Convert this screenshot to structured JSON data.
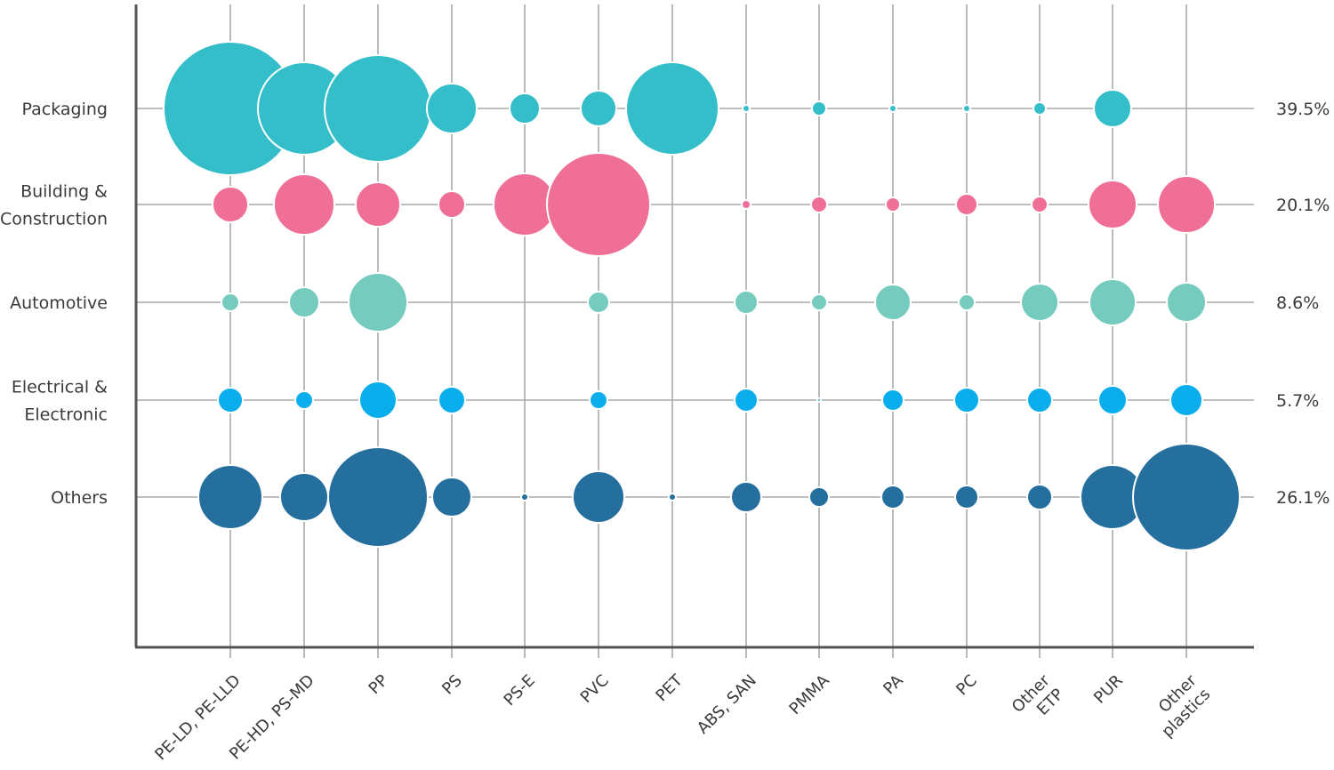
{
  "chart_data": {
    "type": "bubble",
    "title": "",
    "xlabel": "",
    "ylabel": "",
    "categories": [
      "PE-LD, PE-LLD",
      "PE-HD, PS-MD",
      "PP",
      "PS",
      "PS-E",
      "PVC",
      "PET",
      "ABS, SAN",
      "PMMA",
      "PA",
      "PC",
      "Other ETP",
      "PUR",
      "Other plastics"
    ],
    "series": [
      {
        "name": "Packaging",
        "share": "39.5%",
        "color": "#33bec9",
        "values": [
          75,
          52,
          60,
          28,
          17,
          20,
          52,
          4,
          8,
          4,
          4,
          7,
          21,
          0
        ]
      },
      {
        "name": "Building & Construction",
        "share": "20.1%",
        "color": "#ef6f96",
        "values": [
          20,
          34,
          25,
          15,
          35,
          58,
          0,
          5,
          9,
          8,
          12,
          9,
          27,
          32
        ]
      },
      {
        "name": "Automotive",
        "share": "8.6%",
        "color": "#74cbbe",
        "values": [
          10,
          17,
          33,
          0,
          0,
          12,
          0,
          13,
          9,
          20,
          9,
          21,
          26,
          22
        ]
      },
      {
        "name": "Electrical & Electronic",
        "share": "5.7%",
        "color": "#0aaeed",
        "values": [
          14,
          10,
          21,
          15,
          0,
          10,
          0,
          13,
          2,
          12,
          14,
          14,
          16,
          18
        ]
      },
      {
        "name": "Others",
        "share": "26.1%",
        "color": "#256f9e",
        "values": [
          36,
          27,
          56,
          22,
          4,
          29,
          4,
          17,
          11,
          13,
          13,
          14,
          36,
          60
        ]
      }
    ],
    "row_labels": [
      [
        "Packaging"
      ],
      [
        "Building &",
        "Construction"
      ],
      [
        "Automotive"
      ],
      [
        "Electrical &",
        "Electronic"
      ],
      [
        "Others"
      ]
    ],
    "col_labels": [
      [
        "PE-LD, PE-LLD"
      ],
      [
        "PE-HD, PS-MD"
      ],
      [
        "PP"
      ],
      [
        "PS"
      ],
      [
        "PS-E"
      ],
      [
        "PVC"
      ],
      [
        "PET"
      ],
      [
        "ABS, SAN"
      ],
      [
        "PMMA"
      ],
      [
        "PA"
      ],
      [
        "PC"
      ],
      [
        "Other",
        "ETP"
      ],
      [
        "PUR"
      ],
      [
        "Other",
        "plastics"
      ]
    ],
    "value_note": "bubble values are relative sizes estimated from the figure"
  }
}
